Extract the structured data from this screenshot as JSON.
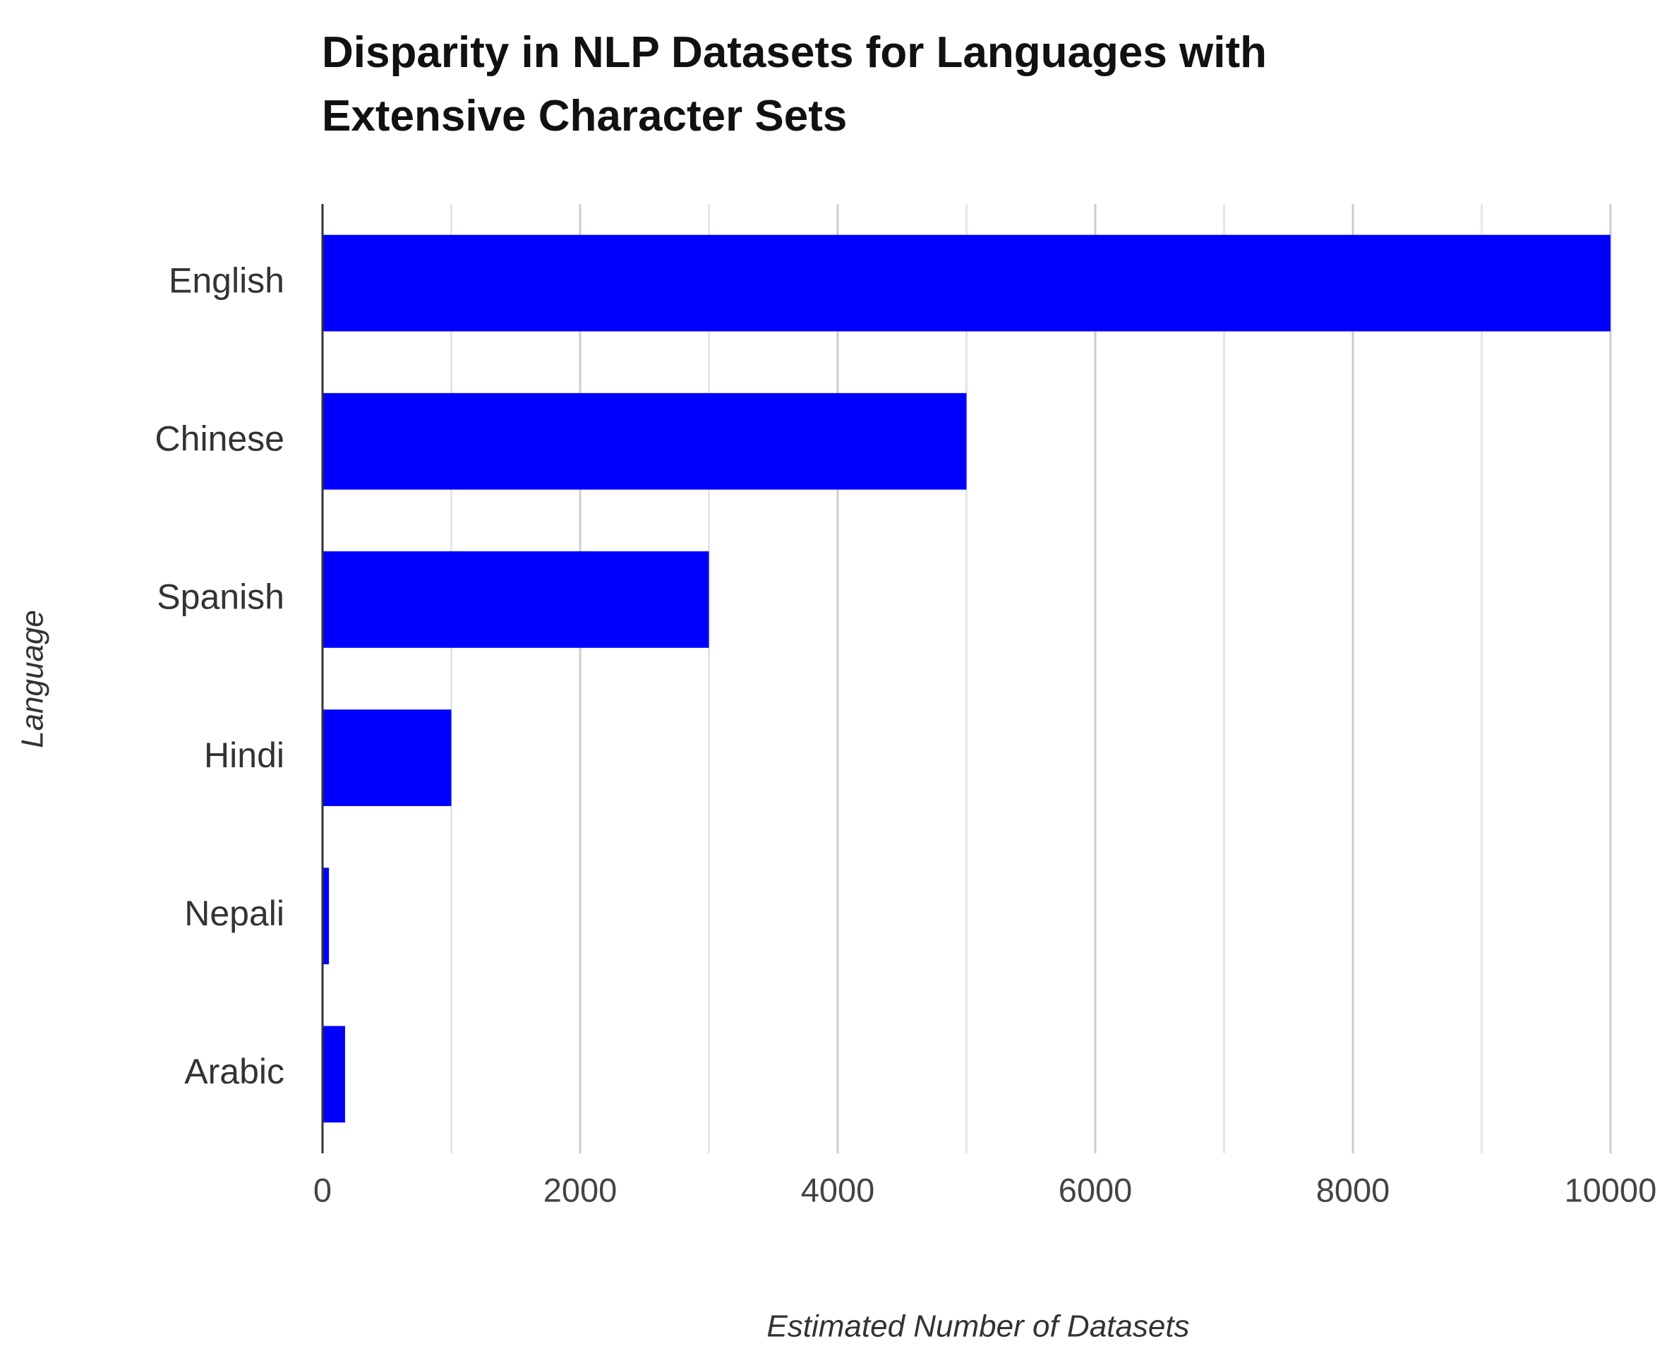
{
  "chart_data": {
    "type": "bar",
    "orientation": "horizontal",
    "title": "Disparity in NLP Datasets for Languages with Extensive Character Sets",
    "x_label": "Estimated Number of Datasets",
    "y_label": "Language",
    "categories": [
      "English",
      "Chinese",
      "Spanish",
      "Hindi",
      "Nepali",
      "Arabic"
    ],
    "values": [
      10000,
      5000,
      3000,
      1000,
      50,
      175
    ],
    "color": "#0000ff",
    "xlim": [
      0,
      10000
    ],
    "xticks": [
      0,
      2000,
      4000,
      6000,
      8000,
      10000
    ],
    "minor_xticks": [
      1000,
      3000,
      5000,
      7000,
      9000
    ],
    "grid": true
  }
}
